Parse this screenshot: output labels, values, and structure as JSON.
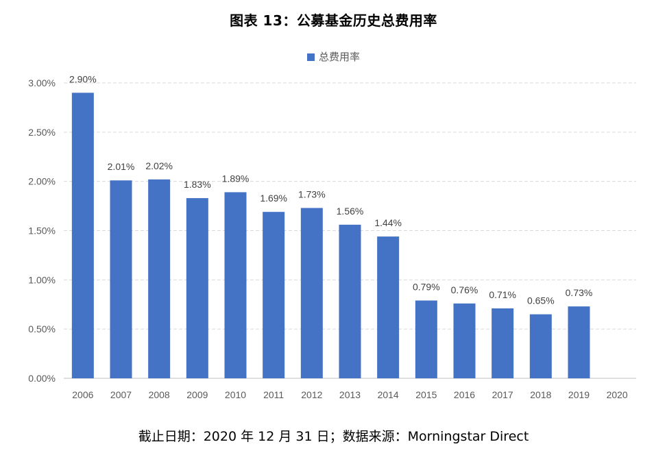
{
  "chart_data": {
    "type": "bar",
    "title": "图表 13：公募基金历史总费用率",
    "categories": [
      "2006",
      "2007",
      "2008",
      "2009",
      "2010",
      "2011",
      "2012",
      "2013",
      "2014",
      "2015",
      "2016",
      "2017",
      "2018",
      "2019",
      "2020"
    ],
    "series": [
      {
        "name": "总费用率",
        "values": [
          2.9,
          2.01,
          2.02,
          1.83,
          1.89,
          1.69,
          1.73,
          1.56,
          1.44,
          0.79,
          0.76,
          0.71,
          0.65,
          0.73,
          null
        ]
      }
    ],
    "data_labels": [
      "2.90%",
      "2.01%",
      "2.02%",
      "1.83%",
      "1.89%",
      "1.69%",
      "1.73%",
      "1.56%",
      "1.44%",
      "0.79%",
      "0.76%",
      "0.71%",
      "0.65%",
      "0.73%",
      ""
    ],
    "y_ticks": [
      "0.00%",
      "0.50%",
      "1.00%",
      "1.50%",
      "2.00%",
      "2.50%",
      "3.00%"
    ],
    "ylim": [
      0,
      3.0
    ],
    "y_unit": "%",
    "grid": true,
    "legend": "top-center",
    "bar_color": "#4472C4",
    "grid_color": "#D9D9D9"
  },
  "footnote": "截止日期：2020 年 12 月 31 日；数据来源：Morningstar Direct"
}
